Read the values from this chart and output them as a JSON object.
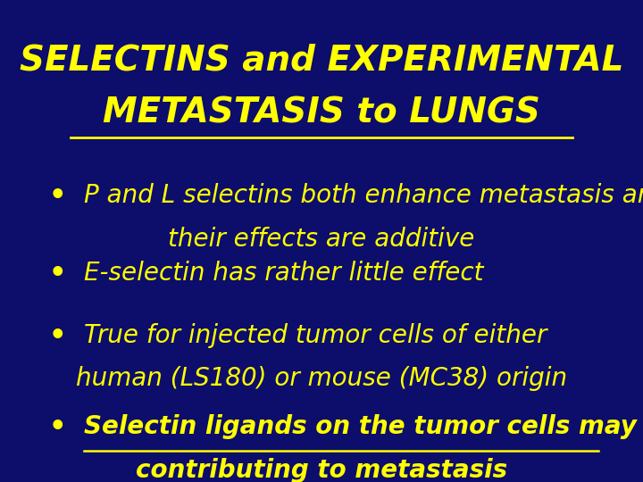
{
  "background_color": "#0d0d6b",
  "title_line1": "SELECTINS and EXPERIMENTAL",
  "title_line2": "METASTASIS to LUNGS",
  "title_color": "#ffff00",
  "title_fontsize": 28,
  "bullet_color": "#ffff00",
  "bullet_fontsize": 20,
  "bullets": [
    {
      "line1": "P and L selectins both enhance metastasis and",
      "line2": "their effects are additive",
      "bold": false,
      "underline": false
    },
    {
      "line1": "E-selectin has rather little effect",
      "line2": null,
      "bold": false,
      "underline": false
    },
    {
      "line1": "True for injected tumor cells of either",
      "line2": "human (LS180) or mouse (MC38) origin",
      "bold": false,
      "underline": false
    },
    {
      "line1": "Selectin ligands on the tumor cells may be",
      "line2": "contributing to metastasis",
      "bold": true,
      "underline": true
    }
  ]
}
